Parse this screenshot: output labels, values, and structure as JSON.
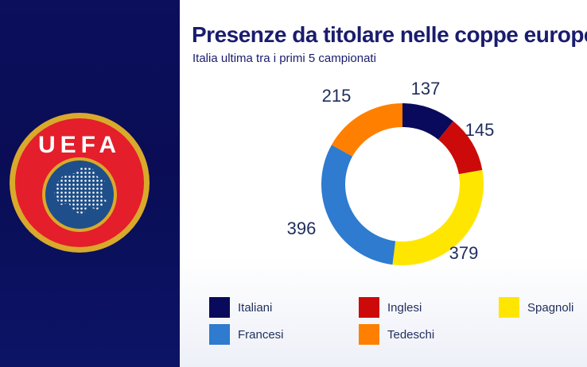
{
  "logo": {
    "text": "UEFA"
  },
  "chart_data": {
    "type": "pie",
    "title": "Presenze da titolare nelle coppe europee",
    "subtitle": "Italia ultima tra i primi 5 campionati",
    "categories": [
      "Italiani",
      "Inglesi",
      "Spagnoli",
      "Francesi",
      "Tedeschi"
    ],
    "values": [
      137,
      145,
      379,
      396,
      215
    ],
    "colors": [
      "#0a0a5c",
      "#cc0a0a",
      "#ffe600",
      "#2e7bcf",
      "#ff8000"
    ],
    "donut": true,
    "legend_position": "bottom"
  }
}
